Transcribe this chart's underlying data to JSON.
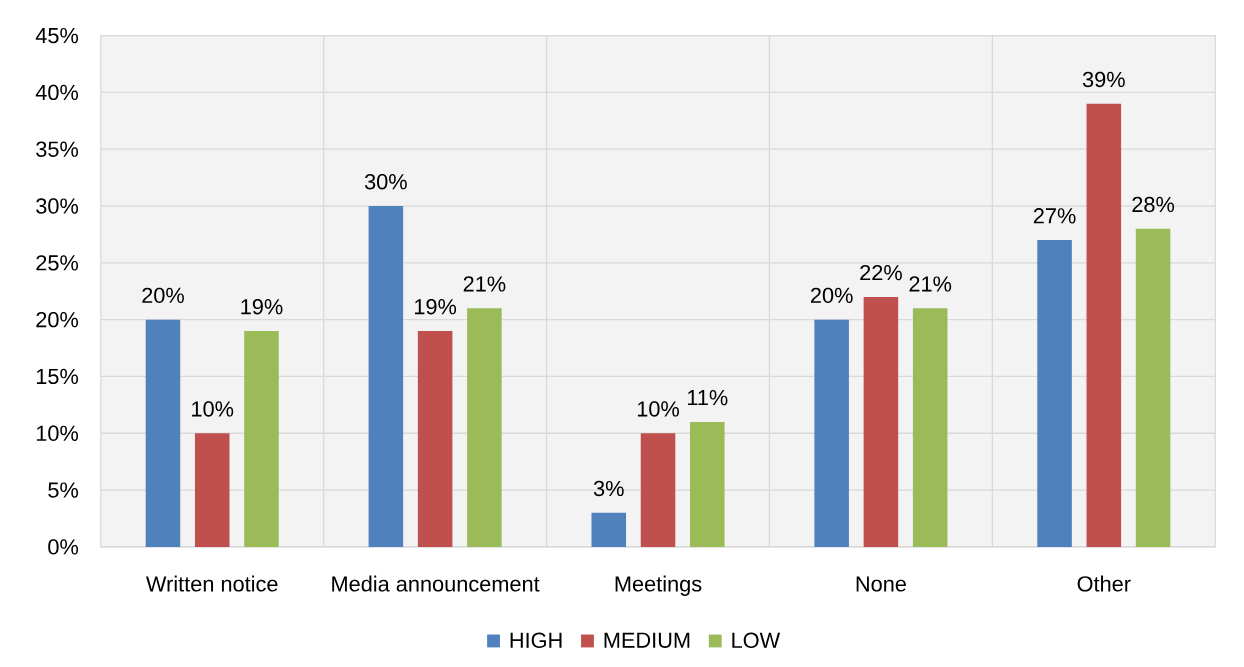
{
  "chart_data": {
    "type": "bar",
    "categories": [
      "Written notice",
      "Media announcement",
      "Meetings",
      "None",
      "Other"
    ],
    "series": [
      {
        "name": "HIGH",
        "color": "#4f81bd",
        "values": [
          20,
          30,
          3,
          20,
          27
        ],
        "value_labels": [
          "20%",
          "30%",
          "3%",
          "20%",
          "27%"
        ]
      },
      {
        "name": "MEDIUM",
        "color": "#c0504d",
        "values": [
          10,
          19,
          10,
          22,
          39
        ],
        "value_labels": [
          "10%",
          "19%",
          "10%",
          "22%",
          "39%"
        ]
      },
      {
        "name": "LOW",
        "color": "#9bbb59",
        "values": [
          19,
          21,
          11,
          21,
          28
        ],
        "value_labels": [
          "19%",
          "21%",
          "11%",
          "21%",
          "28%"
        ]
      }
    ],
    "ylim": [
      0,
      45
    ],
    "yticks": [
      {
        "value": 0,
        "label": "0%"
      },
      {
        "value": 5,
        "label": "5%"
      },
      {
        "value": 10,
        "label": "10%"
      },
      {
        "value": 15,
        "label": "15%"
      },
      {
        "value": 20,
        "label": "20%"
      },
      {
        "value": 25,
        "label": "25%"
      },
      {
        "value": 30,
        "label": "30%"
      },
      {
        "value": 35,
        "label": "35%"
      },
      {
        "value": 40,
        "label": "40%"
      },
      {
        "value": 45,
        "label": "45%"
      }
    ],
    "grid": true,
    "legend": "bottom"
  }
}
